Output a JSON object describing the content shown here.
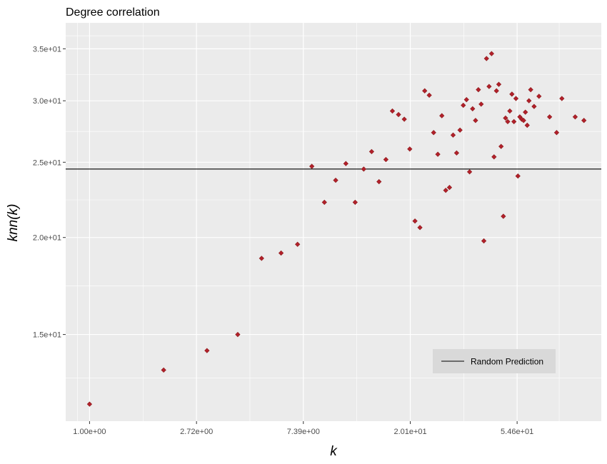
{
  "chart_data": {
    "type": "scatter",
    "title": "Degree correlation",
    "xlabel": "k",
    "ylabel": "knn(k)",
    "x_scale": "log",
    "y_scale": "log",
    "xlim": [
      0.8,
      120
    ],
    "ylim": [
      11.6,
      37.8
    ],
    "x_ticks": [
      {
        "value": 1.0,
        "label": "1.00e+00"
      },
      {
        "value": 2.72,
        "label": "2.72e+00"
      },
      {
        "value": 7.39,
        "label": "7.39e+00"
      },
      {
        "value": 20.1,
        "label": "2.01e+01"
      },
      {
        "value": 54.6,
        "label": "5.46e+01"
      }
    ],
    "y_ticks": [
      {
        "value": 15,
        "label": "1.5e+01"
      },
      {
        "value": 20,
        "label": "2.0e+01"
      },
      {
        "value": 25,
        "label": "2.5e+01"
      },
      {
        "value": 30,
        "label": "3.0e+01"
      },
      {
        "value": 35,
        "label": "3.5e+01"
      }
    ],
    "grid": true,
    "background_color": "#EBEBEB",
    "grid_color": "#FFFFFF",
    "point_color": "#B2202B",
    "point_outline_color": "#8B1A1A",
    "reference_line": {
      "label": "Random Prediction",
      "y": 24.5,
      "color": "#000000"
    },
    "legend_position": "bottom-right",
    "x": [
      1,
      2,
      3,
      4,
      5,
      6,
      7,
      8,
      9,
      10,
      11,
      12,
      13,
      14,
      15,
      16,
      17,
      18,
      19,
      20,
      21,
      22,
      23,
      24,
      25,
      26,
      27,
      28,
      29,
      30,
      31,
      32,
      33,
      34,
      35,
      36,
      37,
      38,
      39,
      40,
      41,
      42,
      43,
      44,
      45,
      46,
      47,
      48,
      49,
      50,
      51,
      52,
      53,
      54,
      55,
      56,
      57,
      58,
      59,
      60,
      61,
      62,
      64,
      67,
      74,
      79,
      83,
      94,
      102
    ],
    "y": [
      12.2,
      13.5,
      14.3,
      15.0,
      18.8,
      19.1,
      19.6,
      24.7,
      22.2,
      23.7,
      24.9,
      22.2,
      24.5,
      25.8,
      23.6,
      25.2,
      29.1,
      28.8,
      28.4,
      26.0,
      21.0,
      20.6,
      30.9,
      30.5,
      27.3,
      25.6,
      28.7,
      23.0,
      23.2,
      27.1,
      25.7,
      27.5,
      29.6,
      30.1,
      24.3,
      29.3,
      28.3,
      31.0,
      29.7,
      19.8,
      34.0,
      31.3,
      34.5,
      25.4,
      30.9,
      31.5,
      26.2,
      21.3,
      28.5,
      28.2,
      29.1,
      30.6,
      28.2,
      30.2,
      24.0,
      28.6,
      28.4,
      28.3,
      29.0,
      27.9,
      30.0,
      31.0,
      29.5,
      30.4,
      28.6,
      27.3,
      30.2,
      28.6,
      28.3
    ]
  }
}
